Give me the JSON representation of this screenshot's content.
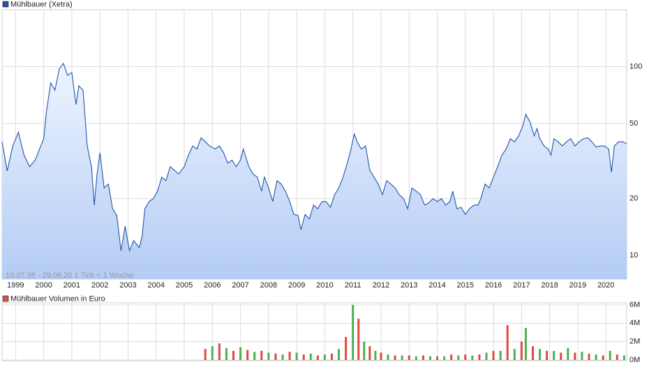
{
  "chart_data": [
    {
      "type": "line",
      "title": "Mühlbauer (Xetra)",
      "annotation": "10.07.98 - 29.09.20    1 Tick = 1 Woche",
      "log_scale": true,
      "grid": true,
      "legend": "top-left",
      "xlim": [
        1998.52,
        2020.74
      ],
      "xticks": [
        1999,
        2000,
        2001,
        2002,
        2003,
        2004,
        2005,
        2006,
        2007,
        2008,
        2009,
        2010,
        2011,
        2012,
        2013,
        2014,
        2015,
        2016,
        2017,
        2018,
        2019,
        2020
      ],
      "ylim": [
        7.5,
        200
      ],
      "yticks": [
        10,
        20,
        50,
        100
      ],
      "series": [
        {
          "name": "Mühlbauer (Xetra)",
          "color": "#2255aa",
          "x": [
            1998.52,
            1998.7,
            1998.9,
            1999.1,
            1999.3,
            1999.5,
            1999.7,
            1999.85,
            2000.0,
            2000.1,
            2000.25,
            2000.4,
            2000.55,
            2000.7,
            2000.85,
            2001.0,
            2001.15,
            2001.25,
            2001.4,
            2001.55,
            2001.7,
            2001.8,
            2001.9,
            2002.0,
            2002.15,
            2002.3,
            2002.45,
            2002.6,
            2002.75,
            2002.9,
            2003.05,
            2003.2,
            2003.4,
            2003.5,
            2003.6,
            2003.75,
            2003.9,
            2004.05,
            2004.2,
            2004.35,
            2004.5,
            2004.65,
            2004.8,
            2005.0,
            2005.15,
            2005.3,
            2005.45,
            2005.6,
            2005.75,
            2005.9,
            2006.1,
            2006.25,
            2006.4,
            2006.55,
            2006.7,
            2006.85,
            2007.0,
            2007.1,
            2007.3,
            2007.45,
            2007.6,
            2007.75,
            2007.85,
            2008.0,
            2008.15,
            2008.3,
            2008.45,
            2008.6,
            2008.75,
            2008.9,
            2009.05,
            2009.15,
            2009.3,
            2009.45,
            2009.6,
            2009.75,
            2009.9,
            2010.05,
            2010.2,
            2010.35,
            2010.5,
            2010.65,
            2010.8,
            2010.9,
            2011.05,
            2011.15,
            2011.3,
            2011.45,
            2011.6,
            2011.75,
            2011.9,
            2012.05,
            2012.2,
            2012.35,
            2012.5,
            2012.65,
            2012.8,
            2012.95,
            2013.1,
            2013.25,
            2013.4,
            2013.55,
            2013.7,
            2013.85,
            2014.0,
            2014.15,
            2014.3,
            2014.45,
            2014.55,
            2014.7,
            2014.85,
            2015.0,
            2015.15,
            2015.3,
            2015.45,
            2015.55,
            2015.7,
            2015.85,
            2016.0,
            2016.15,
            2016.3,
            2016.45,
            2016.6,
            2016.75,
            2016.9,
            2017.05,
            2017.15,
            2017.3,
            2017.45,
            2017.55,
            2017.65,
            2017.8,
            2017.95,
            2018.05,
            2018.15,
            2018.3,
            2018.45,
            2018.6,
            2018.75,
            2018.9,
            2019.05,
            2019.2,
            2019.35,
            2019.5,
            2019.65,
            2019.8,
            2019.95,
            2020.1,
            2020.2,
            2020.3,
            2020.45,
            2020.6,
            2020.74
          ],
          "values": [
            40,
            28,
            38,
            45,
            34,
            29.5,
            32,
            36.6,
            41.5,
            58,
            82,
            75,
            97,
            104,
            90,
            93,
            63,
            79,
            75,
            38,
            29.5,
            18.5,
            27,
            35,
            22.8,
            23.9,
            17.7,
            16.3,
            10.6,
            14.3,
            10.6,
            12,
            11,
            12.6,
            17.7,
            19.3,
            20,
            21.9,
            26,
            24.9,
            29.5,
            28.3,
            27,
            29.5,
            34,
            38,
            36.6,
            42,
            40,
            38,
            36.6,
            38,
            35,
            30.8,
            32,
            29.5,
            32,
            36.6,
            29.5,
            27,
            26,
            21.9,
            26,
            22.8,
            19.3,
            24.9,
            23.9,
            21.9,
            19.3,
            16.5,
            16.3,
            13.7,
            16.5,
            15.6,
            18.5,
            17.7,
            19.3,
            19.3,
            18,
            21,
            22.8,
            26,
            30.8,
            35,
            44,
            40,
            36.6,
            38,
            28.3,
            26,
            23.9,
            21,
            24.9,
            23.9,
            22.8,
            21,
            20,
            17.7,
            22.8,
            21.9,
            21,
            18.5,
            19,
            20,
            19.3,
            20,
            18.5,
            19.3,
            21.9,
            17.7,
            18,
            16.5,
            17.7,
            18.5,
            18.5,
            20,
            23.9,
            22.8,
            26,
            29.5,
            34,
            36.6,
            41.5,
            40,
            43,
            49,
            56,
            51,
            43,
            47,
            41.5,
            38,
            36.6,
            34,
            41.5,
            40,
            38,
            40,
            41.5,
            38,
            40,
            41.5,
            42,
            40,
            37.5,
            38,
            38,
            36.6,
            27.6,
            38,
            40,
            40,
            39
          ]
        }
      ]
    },
    {
      "type": "bar",
      "title": "Mühlbauer Volumen in Euro",
      "legend": "top-left",
      "grid": true,
      "xlim": [
        1998.52,
        2020.74
      ],
      "ylim": [
        0,
        6000000
      ],
      "yticks": [
        {
          "value": 0,
          "label": "0M"
        },
        {
          "value": 2000000,
          "label": "2M"
        },
        {
          "value": 4000000,
          "label": "4M"
        },
        {
          "value": 6000000,
          "label": "6M"
        }
      ],
      "series": [
        {
          "name": "Mühlbauer Volumen in Euro",
          "color": "#d9534f",
          "colors": [
            "#e0473f",
            "#4caf50"
          ],
          "x": [
            2005.75,
            2006.0,
            2006.25,
            2006.5,
            2006.75,
            2007.0,
            2007.25,
            2007.5,
            2007.75,
            2008.0,
            2008.25,
            2008.5,
            2008.75,
            2009.0,
            2009.25,
            2009.5,
            2009.75,
            2010.0,
            2010.25,
            2010.5,
            2010.75,
            2011.0,
            2011.2,
            2011.4,
            2011.6,
            2011.8,
            2012.0,
            2012.25,
            2012.5,
            2012.75,
            2013.0,
            2013.25,
            2013.5,
            2013.75,
            2014.0,
            2014.25,
            2014.5,
            2014.75,
            2015.0,
            2015.25,
            2015.5,
            2015.75,
            2016.0,
            2016.25,
            2016.5,
            2016.75,
            2017.0,
            2017.15,
            2017.4,
            2017.65,
            2017.9,
            2018.15,
            2018.4,
            2018.65,
            2018.9,
            2019.15,
            2019.4,
            2019.65,
            2019.9,
            2020.15,
            2020.4,
            2020.65
          ],
          "values": [
            1200000,
            1500000,
            1800000,
            1300000,
            1000000,
            1400000,
            1100000,
            900000,
            1000000,
            800000,
            700000,
            600000,
            900000,
            800000,
            600000,
            700000,
            500000,
            600000,
            700000,
            1200000,
            2500000,
            6000000,
            4500000,
            2000000,
            1500000,
            1000000,
            800000,
            600000,
            500000,
            500000,
            500000,
            400000,
            500000,
            400000,
            400000,
            400000,
            600000,
            500000,
            600000,
            500000,
            600000,
            800000,
            1000000,
            1000000,
            3800000,
            1200000,
            2000000,
            3500000,
            1500000,
            1200000,
            1000000,
            1000000,
            800000,
            1300000,
            800000,
            900000,
            700000,
            600000,
            500000,
            1000000,
            600000,
            500000
          ]
        }
      ]
    }
  ]
}
